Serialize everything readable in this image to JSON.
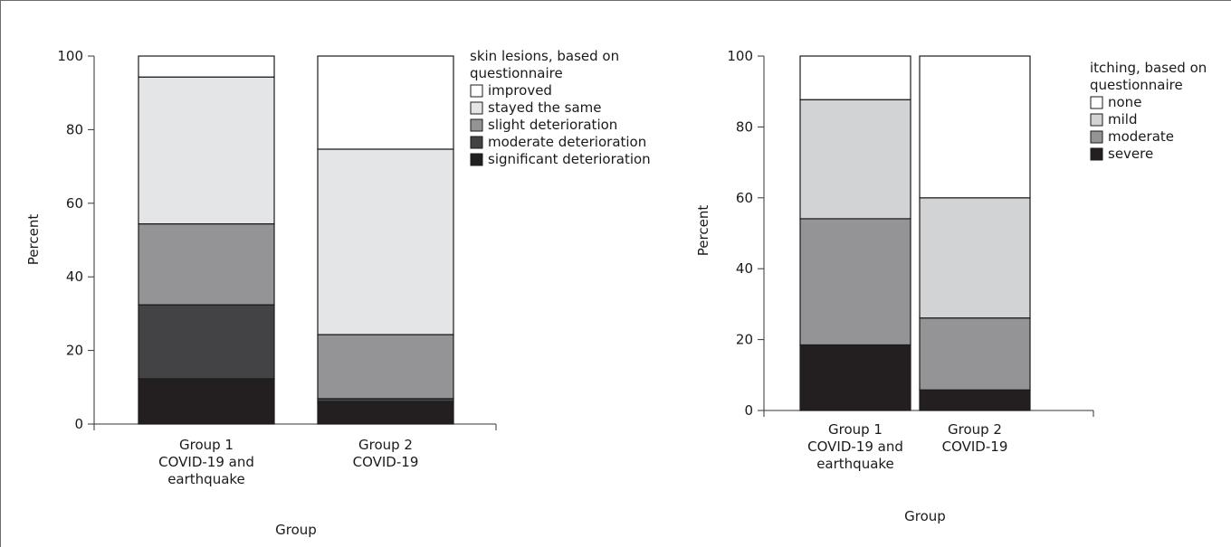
{
  "chart_data": [
    {
      "type": "bar",
      "stacked": true,
      "ylabel": "Percent",
      "xlabel": "Group",
      "ylim": [
        0,
        100
      ],
      "yticks": [
        "0",
        "20",
        "40",
        "60",
        "80",
        "100"
      ],
      "categories": [
        [
          "Group 1",
          "COVID-19 and",
          "earthquake"
        ],
        [
          "Group 2",
          "COVID-19"
        ]
      ],
      "legend_title": [
        "skin lesions, based on",
        "questionnaire"
      ],
      "legend_position": "top-right",
      "series": [
        {
          "name": "significant deterioration",
          "values": [
            12.3,
            6.1
          ],
          "color": "#231f20"
        },
        {
          "name": "moderate deterioration",
          "values": [
            20.1,
            0.8
          ],
          "color": "#434345"
        },
        {
          "name": "slight deterioration",
          "values": [
            22.0,
            17.4
          ],
          "color": "#949496"
        },
        {
          "name": "stayed the same",
          "values": [
            39.9,
            50.4
          ],
          "color": "#e4e5e6"
        },
        {
          "name": "improved",
          "values": [
            5.7,
            25.3
          ],
          "color": "#ffffff"
        }
      ]
    },
    {
      "type": "bar",
      "stacked": true,
      "ylabel": "Percent",
      "xlabel": "Group",
      "ylim": [
        0,
        100
      ],
      "yticks": [
        "0",
        "20",
        "40",
        "60",
        "80",
        "100"
      ],
      "categories": [
        [
          "Group 1",
          "COVID-19 and",
          "earthquake"
        ],
        [
          "Group 2",
          "COVID-19"
        ]
      ],
      "legend_title": [
        "itching, based on",
        "questionnaire"
      ],
      "legend_position": "top-right",
      "series": [
        {
          "name": "severe",
          "values": [
            18.5,
            5.8
          ],
          "color": "#231f20"
        },
        {
          "name": "moderate",
          "values": [
            35.6,
            20.3
          ],
          "color": "#949496"
        },
        {
          "name": "mild",
          "values": [
            33.6,
            33.9
          ],
          "color": "#d2d3d4"
        },
        {
          "name": "none",
          "values": [
            12.3,
            40.0
          ],
          "color": "#ffffff"
        }
      ]
    }
  ]
}
